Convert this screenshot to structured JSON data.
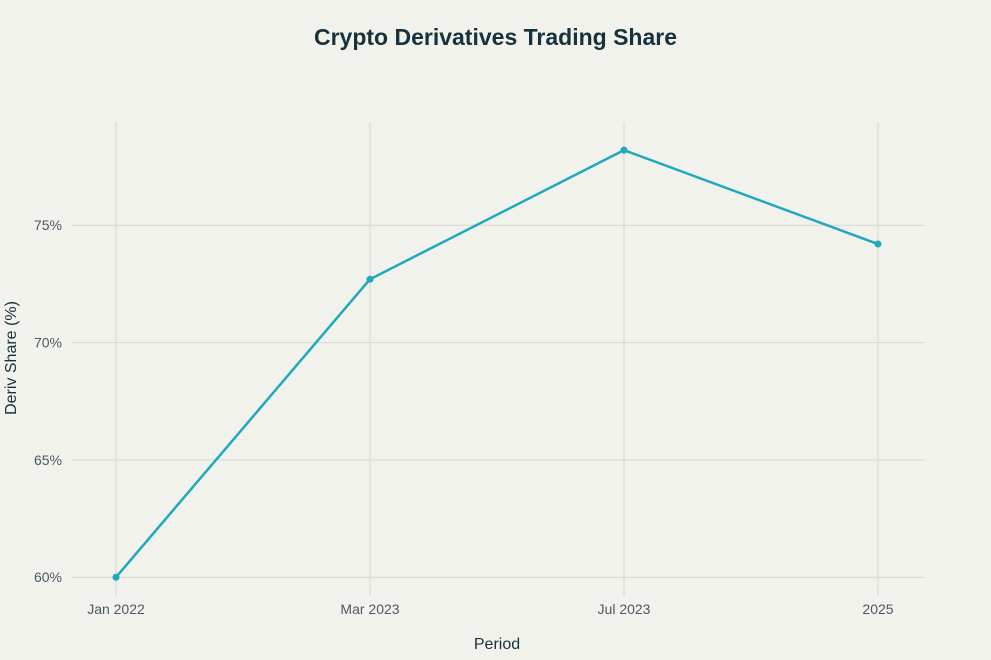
{
  "chart_data": {
    "type": "line",
    "title": "Crypto Derivatives Trading Share",
    "xlabel": "Period",
    "ylabel": "Deriv Share (%)",
    "categories": [
      "Jan 2022",
      "Mar 2023",
      "Jul 2023",
      "2025"
    ],
    "series": [
      {
        "name": "Deriv Share",
        "values": [
          60.0,
          72.7,
          78.2,
          74.2
        ]
      }
    ],
    "yticks": [
      60,
      65,
      70,
      75
    ],
    "ytick_labels": [
      "60%",
      "65%",
      "70%",
      "75%"
    ],
    "ylim": [
      59.2,
      79.4
    ],
    "grid": true,
    "line_color": "#1fa9bd",
    "grid_color": "#d6d8d2"
  }
}
